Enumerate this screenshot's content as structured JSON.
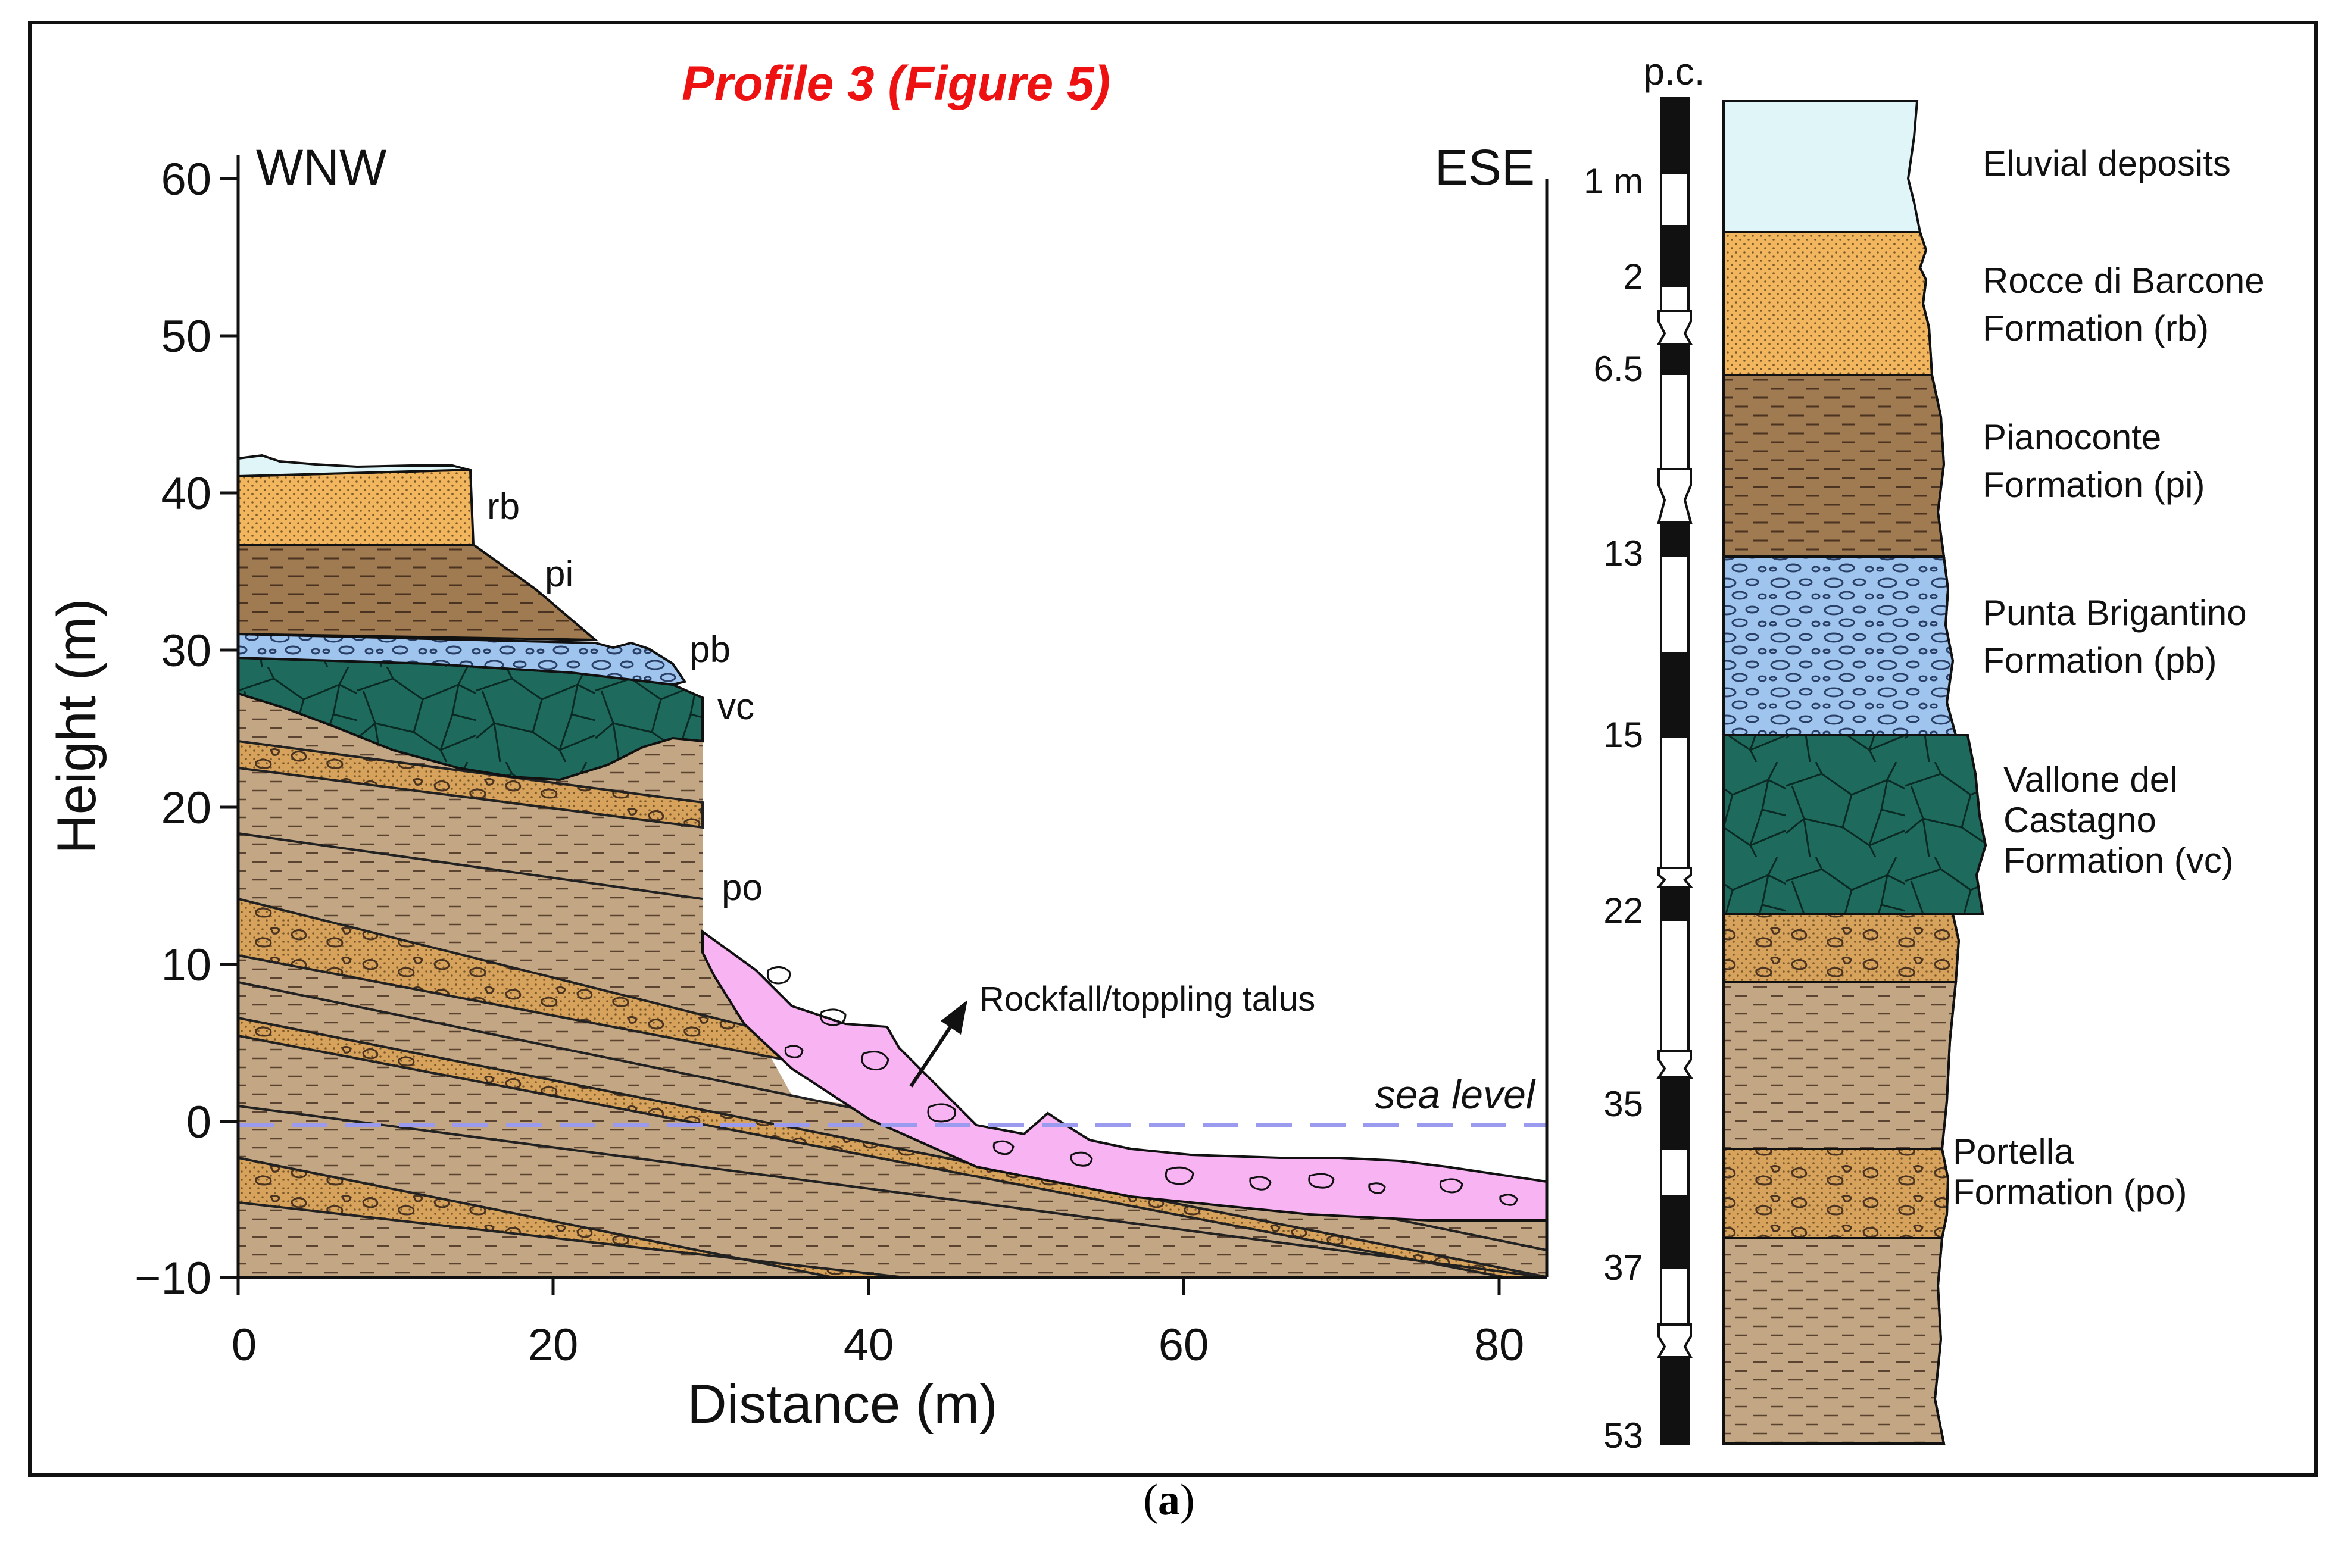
{
  "title": "Profile 3 (Figure 5)",
  "colors": {
    "eluvial": "#dff5f8",
    "rb": "#f2b65e",
    "pi": "#a07a50",
    "pb": "#9fc5ee",
    "vc": "#1e6b5e",
    "po": "#c3a684",
    "po_band": "#d6a25c",
    "talus": "#f7b3f2",
    "sea_level": "#9a9aee",
    "title": "#ee1111"
  },
  "profile": {
    "direction_left": "WNW",
    "direction_right": "ESE",
    "xlabel": "Distance (m)",
    "ylabel": "Height (m)",
    "x_ticks": [
      "0",
      "20",
      "40",
      "60",
      "80"
    ],
    "y_ticks": [
      "60",
      "50",
      "40",
      "30",
      "20",
      "10",
      "0",
      "−10"
    ],
    "xlim": [
      0,
      83
    ],
    "ylim": [
      -10,
      60
    ],
    "sea_level_label": "sea level",
    "talus_label": "Rockfall/toppling talus",
    "unit_labels": {
      "rb": "rb",
      "pi": "pi",
      "pb": "pb",
      "vc": "vc",
      "po": "po"
    }
  },
  "column": {
    "top_label": "p.c.",
    "depth_labels": [
      "1 m",
      "2",
      "6.5",
      "13",
      "15",
      "22",
      "35",
      "37",
      "53"
    ],
    "units": [
      {
        "name_line1": "Eluvial deposits",
        "name_line2": ""
      },
      {
        "name_line1": "Rocce di Barcone",
        "name_line2": "Formation (rb)"
      },
      {
        "name_line1": "Pianoconte",
        "name_line2": "Formation (pi)"
      },
      {
        "name_line1": "Punta Brigantino",
        "name_line2": "Formation (pb)"
      },
      {
        "name_line1": "Vallone del",
        "name_line2": "Castagno",
        "name_line3": "Formation (vc)"
      },
      {
        "name_line1": "Portella",
        "name_line2": "Formation (po)"
      }
    ]
  },
  "caption_letter": "a"
}
